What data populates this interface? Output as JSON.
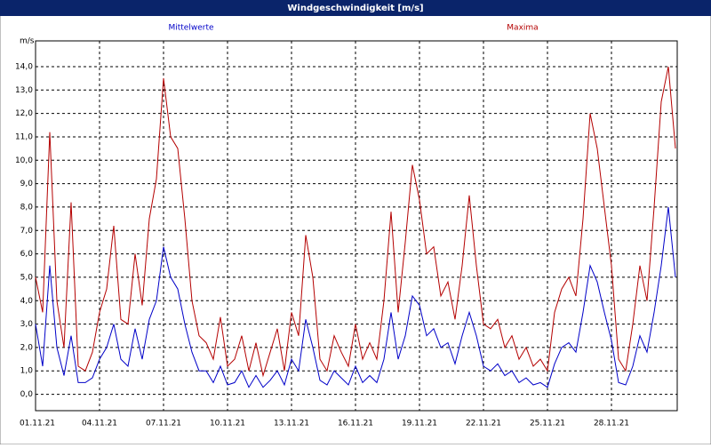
{
  "chart_data": {
    "type": "line",
    "title": "Windgeschwindigkeit [m/s]",
    "y_label": "m/s",
    "x": [
      0,
      8,
      16,
      24,
      32,
      40,
      48,
      56,
      64,
      72,
      80,
      88,
      96,
      104,
      112,
      120,
      128,
      136,
      144,
      152,
      160,
      168,
      176,
      184,
      192,
      200,
      208,
      216,
      224,
      232,
      240,
      248,
      256,
      264,
      272,
      280,
      288,
      296,
      304,
      312,
      320,
      328,
      336,
      344,
      352,
      360,
      368,
      376,
      384,
      392,
      400,
      408,
      416,
      424,
      432,
      440,
      448,
      456,
      464,
      472,
      480,
      488,
      496,
      504,
      512,
      520,
      528,
      536,
      544,
      552,
      560,
      568,
      576,
      584,
      592,
      600,
      608,
      616,
      624,
      632,
      640,
      648,
      656,
      664,
      672,
      680,
      688,
      696,
      704,
      712,
      720
    ],
    "series": [
      {
        "name": "Mittelwerte",
        "color": "#0000c8",
        "values": [
          3.0,
          1.2,
          5.5,
          2.0,
          0.8,
          2.5,
          0.5,
          0.5,
          0.7,
          1.5,
          2.0,
          3.0,
          1.5,
          1.2,
          2.8,
          1.5,
          3.2,
          4.0,
          6.3,
          5.0,
          4.5,
          3.0,
          1.8,
          1.0,
          1.0,
          0.5,
          1.2,
          0.4,
          0.5,
          1.0,
          0.3,
          0.8,
          0.3,
          0.6,
          1.0,
          0.4,
          1.5,
          1.0,
          3.2,
          2.0,
          0.6,
          0.4,
          1.0,
          0.7,
          0.4,
          1.2,
          0.5,
          0.8,
          0.5,
          1.5,
          3.5,
          1.5,
          2.5,
          4.2,
          3.8,
          2.5,
          2.8,
          2.0,
          2.2,
          1.3,
          2.5,
          3.5,
          2.5,
          1.2,
          1.0,
          1.3,
          0.8,
          1.0,
          0.5,
          0.7,
          0.4,
          0.5,
          0.3,
          1.3,
          2.0,
          2.2,
          1.8,
          3.5,
          5.5,
          4.8,
          3.5,
          2.3,
          0.5,
          0.4,
          1.2,
          2.5,
          1.8,
          3.5,
          5.5,
          8.0,
          5.0
        ]
      },
      {
        "name": "Maxima",
        "color": "#b40000",
        "values": [
          5.0,
          3.5,
          11.2,
          4.0,
          2.0,
          8.2,
          1.2,
          1.0,
          1.8,
          3.5,
          4.5,
          7.2,
          3.2,
          3.0,
          6.0,
          3.8,
          7.5,
          9.2,
          13.5,
          11.0,
          10.5,
          7.5,
          4.0,
          2.5,
          2.2,
          1.5,
          3.3,
          1.2,
          1.5,
          2.5,
          1.0,
          2.2,
          0.8,
          1.8,
          2.8,
          1.0,
          3.5,
          2.5,
          6.8,
          5.0,
          1.5,
          1.0,
          2.5,
          1.8,
          1.2,
          3.0,
          1.5,
          2.2,
          1.5,
          4.0,
          7.8,
          3.5,
          6.5,
          9.8,
          8.3,
          6.0,
          6.3,
          4.2,
          4.8,
          3.2,
          5.5,
          8.5,
          5.5,
          3.0,
          2.8,
          3.2,
          2.0,
          2.5,
          1.5,
          2.0,
          1.2,
          1.5,
          1.0,
          3.5,
          4.5,
          5.0,
          4.2,
          7.5,
          12.0,
          10.5,
          8.0,
          5.5,
          1.5,
          1.0,
          3.0,
          5.5,
          4.0,
          8.0,
          12.5,
          14.0,
          10.5
        ]
      }
    ],
    "xlim": [
      0,
      722
    ],
    "xticks": [
      {
        "value": 0,
        "label": "01.11.21"
      },
      {
        "value": 72,
        "label": "04.11.21"
      },
      {
        "value": 144,
        "label": "07.11.21"
      },
      {
        "value": 216,
        "label": "10.11.21"
      },
      {
        "value": 288,
        "label": "13.11.21"
      },
      {
        "value": 360,
        "label": "16.11.21"
      },
      {
        "value": 432,
        "label": "19.11.21"
      },
      {
        "value": 504,
        "label": "22.11.21"
      },
      {
        "value": 576,
        "label": "25.11.21"
      },
      {
        "value": 648,
        "label": "28.11.21"
      }
    ],
    "ylim": [
      -0.7,
      15.1
    ],
    "yticks": [
      {
        "value": 0,
        "label": "0,0"
      },
      {
        "value": 1,
        "label": "1,0"
      },
      {
        "value": 2,
        "label": "2,0"
      },
      {
        "value": 3,
        "label": "3,0"
      },
      {
        "value": 4,
        "label": "4,0"
      },
      {
        "value": 5,
        "label": "5,0"
      },
      {
        "value": 6,
        "label": "6,0"
      },
      {
        "value": 7,
        "label": "7,0"
      },
      {
        "value": 8,
        "label": "8,0"
      },
      {
        "value": 9,
        "label": "9,0"
      },
      {
        "value": 10,
        "label": "10,0"
      },
      {
        "value": 11,
        "label": "11,0"
      },
      {
        "value": 12,
        "label": "12,0"
      },
      {
        "value": 13,
        "label": "13,0"
      },
      {
        "value": 14,
        "label": "14,0"
      }
    ],
    "grid": true
  }
}
